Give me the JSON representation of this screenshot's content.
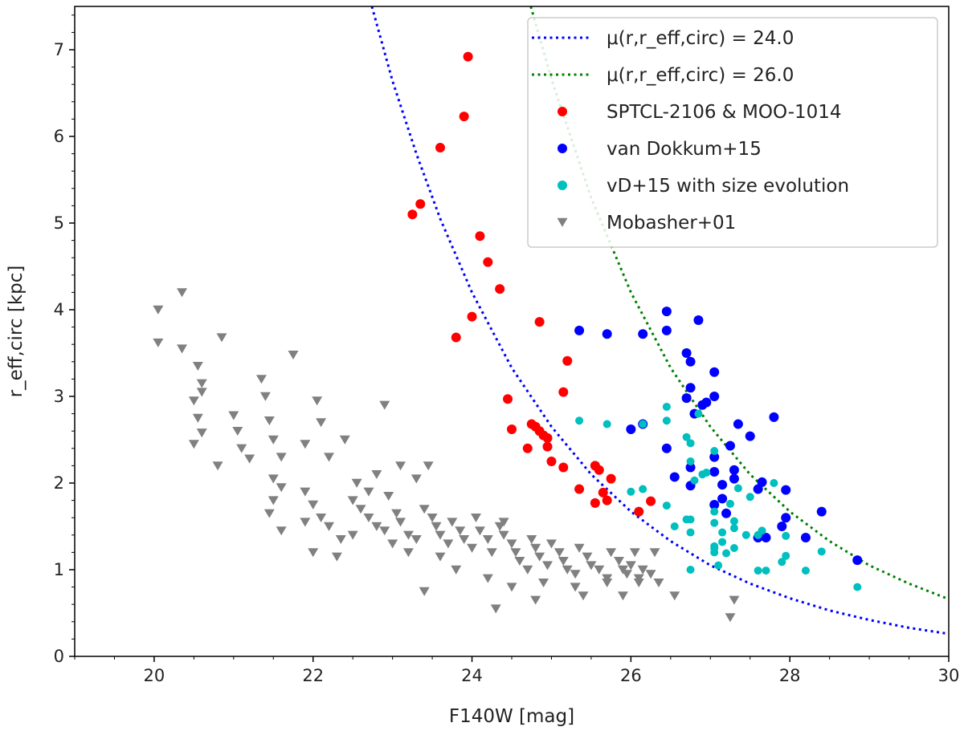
{
  "chart_data": {
    "type": "scatter",
    "title": "",
    "xlabel": "F140W [mag]",
    "ylabel": "r_eff,circ [kpc]",
    "xlim": [
      19,
      30
    ],
    "ylim": [
      0,
      7.5
    ],
    "xticks": [
      20,
      22,
      24,
      26,
      28,
      30
    ],
    "yticks": [
      0,
      1,
      2,
      3,
      4,
      5,
      6,
      7
    ],
    "grid": false,
    "legend_position": "top-right",
    "curves": [
      {
        "name": "μ(r,r_eff,circ) = 24.0",
        "color": "#0000ff",
        "style": "dotted",
        "x": [
          22.74,
          23.0,
          23.3,
          23.6,
          24.0,
          24.5,
          25.0,
          25.5,
          26.0,
          26.5,
          27.0,
          27.5,
          28.0,
          28.5,
          29.0,
          29.5,
          30.0
        ],
        "y": [
          7.5,
          6.64,
          5.8,
          5.05,
          4.2,
          3.33,
          2.65,
          2.1,
          1.67,
          1.33,
          1.05,
          0.84,
          0.67,
          0.53,
          0.42,
          0.33,
          0.26
        ]
      },
      {
        "name": "μ(r,r_eff,circ) = 26.0",
        "color": "#008000",
        "style": "dotted",
        "x": [
          24.74,
          25.0,
          25.5,
          26.0,
          26.5,
          27.0,
          27.5,
          28.0,
          28.5,
          29.0,
          29.5,
          30.0
        ],
        "y": [
          7.5,
          6.66,
          5.29,
          4.2,
          3.33,
          2.65,
          2.1,
          1.67,
          1.33,
          1.05,
          0.84,
          0.66
        ]
      }
    ],
    "series": [
      {
        "name": "SPTCL-2106 & MOO-1014",
        "color": "#ff0000",
        "marker": "circle",
        "points": [
          [
            23.95,
            6.92
          ],
          [
            23.9,
            6.23
          ],
          [
            23.6,
            5.87
          ],
          [
            23.35,
            5.22
          ],
          [
            23.25,
            5.1
          ],
          [
            24.1,
            4.85
          ],
          [
            24.2,
            4.55
          ],
          [
            24.35,
            4.24
          ],
          [
            24.0,
            3.92
          ],
          [
            23.8,
            3.68
          ],
          [
            24.85,
            3.86
          ],
          [
            25.2,
            3.41
          ],
          [
            25.15,
            3.05
          ],
          [
            24.45,
            2.97
          ],
          [
            24.5,
            2.62
          ],
          [
            24.75,
            2.68
          ],
          [
            24.8,
            2.65
          ],
          [
            24.85,
            2.6
          ],
          [
            24.9,
            2.55
          ],
          [
            24.95,
            2.52
          ],
          [
            24.7,
            2.4
          ],
          [
            24.95,
            2.42
          ],
          [
            25.0,
            2.25
          ],
          [
            25.15,
            2.18
          ],
          [
            25.55,
            2.2
          ],
          [
            25.6,
            2.15
          ],
          [
            25.35,
            1.93
          ],
          [
            25.65,
            1.89
          ],
          [
            25.75,
            2.05
          ],
          [
            25.7,
            1.8
          ],
          [
            25.55,
            1.77
          ],
          [
            26.1,
            1.67
          ],
          [
            26.25,
            1.79
          ]
        ]
      },
      {
        "name": "van Dokkum+15",
        "color": "#0000ff",
        "marker": "circle",
        "points": [
          [
            25.35,
            3.76
          ],
          [
            25.7,
            3.72
          ],
          [
            26.45,
            3.98
          ],
          [
            26.45,
            3.76
          ],
          [
            26.85,
            3.88
          ],
          [
            26.15,
            3.72
          ],
          [
            26.7,
            3.5
          ],
          [
            26.75,
            3.4
          ],
          [
            26.75,
            3.1
          ],
          [
            27.05,
            3.28
          ],
          [
            26.9,
            2.9
          ],
          [
            26.95,
            2.93
          ],
          [
            27.05,
            3.0
          ],
          [
            26.7,
            2.98
          ],
          [
            26.8,
            2.8
          ],
          [
            27.35,
            2.68
          ],
          [
            27.5,
            2.54
          ],
          [
            27.8,
            2.76
          ],
          [
            26.0,
            2.62
          ],
          [
            26.15,
            2.68
          ],
          [
            26.45,
            2.4
          ],
          [
            26.55,
            2.07
          ],
          [
            26.75,
            2.18
          ],
          [
            26.75,
            1.97
          ],
          [
            27.05,
            2.3
          ],
          [
            27.25,
            2.43
          ],
          [
            27.05,
            2.13
          ],
          [
            27.15,
            1.98
          ],
          [
            27.3,
            2.15
          ],
          [
            27.3,
            2.05
          ],
          [
            27.05,
            1.75
          ],
          [
            27.15,
            1.82
          ],
          [
            27.2,
            1.65
          ],
          [
            27.6,
            1.93
          ],
          [
            27.65,
            2.01
          ],
          [
            27.6,
            1.37
          ],
          [
            27.7,
            1.37
          ],
          [
            27.95,
            1.92
          ],
          [
            27.95,
            1.6
          ],
          [
            27.9,
            1.5
          ],
          [
            28.2,
            1.37
          ],
          [
            28.4,
            1.67
          ],
          [
            28.85,
            1.11
          ]
        ]
      },
      {
        "name": "vD+15 with size evolution",
        "color": "#00bfbf",
        "marker": "circle",
        "points": [
          [
            25.35,
            2.72
          ],
          [
            25.7,
            2.68
          ],
          [
            26.45,
            2.88
          ],
          [
            26.45,
            2.72
          ],
          [
            26.85,
            2.8
          ],
          [
            26.15,
            2.68
          ],
          [
            26.7,
            2.53
          ],
          [
            26.75,
            2.46
          ],
          [
            26.75,
            2.25
          ],
          [
            26.9,
            2.1
          ],
          [
            26.95,
            2.12
          ],
          [
            27.05,
            2.37
          ],
          [
            26.8,
            2.03
          ],
          [
            27.35,
            1.94
          ],
          [
            27.5,
            1.84
          ],
          [
            27.8,
            2.0
          ],
          [
            26.0,
            1.9
          ],
          [
            26.15,
            1.93
          ],
          [
            26.45,
            1.74
          ],
          [
            26.55,
            1.5
          ],
          [
            26.75,
            1.58
          ],
          [
            26.75,
            1.43
          ],
          [
            27.05,
            1.67
          ],
          [
            27.25,
            1.76
          ],
          [
            27.05,
            1.54
          ],
          [
            27.15,
            1.43
          ],
          [
            27.3,
            1.56
          ],
          [
            27.3,
            1.48
          ],
          [
            27.05,
            1.27
          ],
          [
            27.15,
            1.32
          ],
          [
            27.2,
            1.19
          ],
          [
            27.6,
            1.4
          ],
          [
            27.65,
            1.45
          ],
          [
            27.6,
            0.99
          ],
          [
            27.7,
            0.99
          ],
          [
            27.95,
            1.39
          ],
          [
            27.95,
            1.16
          ],
          [
            27.9,
            1.09
          ],
          [
            28.2,
            0.99
          ],
          [
            28.4,
            1.21
          ],
          [
            28.85,
            0.8
          ],
          [
            26.7,
            1.58
          ],
          [
            26.75,
            1.0
          ],
          [
            27.05,
            1.25
          ],
          [
            27.05,
            1.2
          ],
          [
            27.1,
            1.05
          ],
          [
            27.3,
            1.25
          ],
          [
            27.45,
            1.4
          ]
        ]
      },
      {
        "name": "Mobasher+01",
        "color": "#808080",
        "marker": "triangle-down",
        "points": [
          [
            20.05,
            4.0
          ],
          [
            20.05,
            3.62
          ],
          [
            20.35,
            4.2
          ],
          [
            20.35,
            3.55
          ],
          [
            20.55,
            3.35
          ],
          [
            20.6,
            3.15
          ],
          [
            20.6,
            3.05
          ],
          [
            20.5,
            2.95
          ],
          [
            20.55,
            2.75
          ],
          [
            20.6,
            2.58
          ],
          [
            20.5,
            2.45
          ],
          [
            20.8,
            2.2
          ],
          [
            20.85,
            3.68
          ],
          [
            21.0,
            2.78
          ],
          [
            21.05,
            2.6
          ],
          [
            21.1,
            2.4
          ],
          [
            21.2,
            2.28
          ],
          [
            21.35,
            3.2
          ],
          [
            21.4,
            3.0
          ],
          [
            21.45,
            2.72
          ],
          [
            21.5,
            2.5
          ],
          [
            21.6,
            2.3
          ],
          [
            21.75,
            3.48
          ],
          [
            21.9,
            2.45
          ],
          [
            22.05,
            2.95
          ],
          [
            22.1,
            2.7
          ],
          [
            22.2,
            2.3
          ],
          [
            22.4,
            2.5
          ],
          [
            22.55,
            2.0
          ],
          [
            22.7,
            1.9
          ],
          [
            22.9,
            2.9
          ],
          [
            23.1,
            2.2
          ],
          [
            23.3,
            2.05
          ],
          [
            23.45,
            2.2
          ],
          [
            21.5,
            2.05
          ],
          [
            21.6,
            1.95
          ],
          [
            21.5,
            1.8
          ],
          [
            21.45,
            1.65
          ],
          [
            21.6,
            1.45
          ],
          [
            21.9,
            1.9
          ],
          [
            22.0,
            1.75
          ],
          [
            22.1,
            1.6
          ],
          [
            22.2,
            1.5
          ],
          [
            22.35,
            1.35
          ],
          [
            22.5,
            1.8
          ],
          [
            22.6,
            1.7
          ],
          [
            22.7,
            1.6
          ],
          [
            22.8,
            1.5
          ],
          [
            22.9,
            1.45
          ],
          [
            22.95,
            1.85
          ],
          [
            23.05,
            1.65
          ],
          [
            23.1,
            1.55
          ],
          [
            23.2,
            1.4
          ],
          [
            23.3,
            1.35
          ],
          [
            23.4,
            1.7
          ],
          [
            23.5,
            1.6
          ],
          [
            23.55,
            1.5
          ],
          [
            23.6,
            1.4
          ],
          [
            23.7,
            1.3
          ],
          [
            23.75,
            1.55
          ],
          [
            23.85,
            1.45
          ],
          [
            23.9,
            1.35
          ],
          [
            24.0,
            1.25
          ],
          [
            24.05,
            1.6
          ],
          [
            24.1,
            1.45
          ],
          [
            24.2,
            1.35
          ],
          [
            24.25,
            1.2
          ],
          [
            24.35,
            1.5
          ],
          [
            24.4,
            1.4
          ],
          [
            24.5,
            1.3
          ],
          [
            24.55,
            1.2
          ],
          [
            24.6,
            1.1
          ],
          [
            24.7,
            1.0
          ],
          [
            24.75,
            1.35
          ],
          [
            24.8,
            1.25
          ],
          [
            24.85,
            1.15
          ],
          [
            24.95,
            1.05
          ],
          [
            25.0,
            1.3
          ],
          [
            25.1,
            1.2
          ],
          [
            25.15,
            1.1
          ],
          [
            25.2,
            1.0
          ],
          [
            25.3,
            0.95
          ],
          [
            25.35,
            1.25
          ],
          [
            25.45,
            1.15
          ],
          [
            25.5,
            1.05
          ],
          [
            25.6,
            1.0
          ],
          [
            25.7,
            0.9
          ],
          [
            25.75,
            1.2
          ],
          [
            25.85,
            1.1
          ],
          [
            25.9,
            1.0
          ],
          [
            25.95,
            0.95
          ],
          [
            26.0,
            1.05
          ],
          [
            26.1,
            0.9
          ],
          [
            26.15,
            1.0
          ],
          [
            26.25,
            0.95
          ],
          [
            26.35,
            0.85
          ],
          [
            26.55,
            0.7
          ],
          [
            26.05,
            1.2
          ],
          [
            23.4,
            0.75
          ],
          [
            24.3,
            0.55
          ],
          [
            24.8,
            0.65
          ],
          [
            25.4,
            0.7
          ],
          [
            25.9,
            0.7
          ],
          [
            26.1,
            0.85
          ],
          [
            26.3,
            1.2
          ],
          [
            27.25,
            0.45
          ],
          [
            27.3,
            0.65
          ],
          [
            22.5,
            1.4
          ],
          [
            23.0,
            1.3
          ],
          [
            22.3,
            1.15
          ],
          [
            22.0,
            1.2
          ],
          [
            21.9,
            1.55
          ],
          [
            23.8,
            1.0
          ],
          [
            24.2,
            0.9
          ],
          [
            24.5,
            0.8
          ],
          [
            24.9,
            0.85
          ],
          [
            25.3,
            0.8
          ],
          [
            25.7,
            0.85
          ],
          [
            23.6,
            1.15
          ],
          [
            22.8,
            2.1
          ],
          [
            23.2,
            1.2
          ],
          [
            24.4,
            1.55
          ]
        ]
      }
    ]
  }
}
